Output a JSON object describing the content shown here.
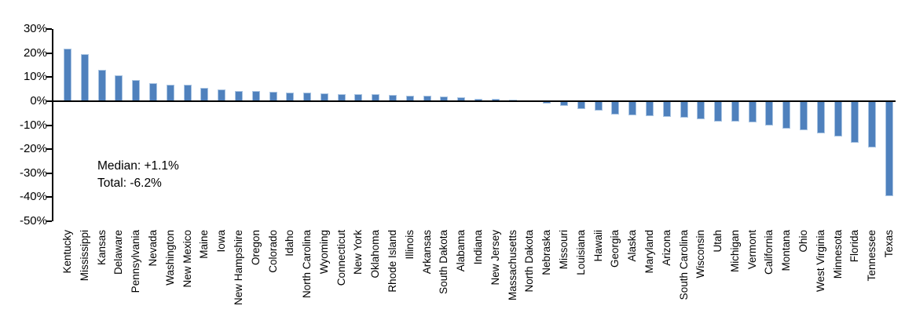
{
  "chart_data": {
    "type": "bar",
    "title": "",
    "xlabel": "",
    "ylabel": "",
    "ylim": [
      -50,
      30
    ],
    "ytick_step": 10,
    "ytick_labels": [
      "30%",
      "20%",
      "10%",
      "0%",
      "-10%",
      "-20%",
      "-30%",
      "-40%",
      "-50%"
    ],
    "grid": false,
    "legend_position": "none",
    "bar_color": "#4f81bd",
    "bar_edge_color": "#a9c4e2",
    "axis_color": "#000000",
    "categories": [
      "Kentucky",
      "Mississippi",
      "Kansas",
      "Delaware",
      "Pennsylvania",
      "Nevada",
      "Washington",
      "New Mexico",
      "Maine",
      "Iowa",
      "New Hampshire",
      "Oregon",
      "Colorado",
      "Idaho",
      "North Carolina",
      "Wyoming",
      "Connecticut",
      "New York",
      "Oklahoma",
      "Rhode Island",
      "Illinois",
      "Arkansas",
      "South Dakota",
      "Alabama",
      "Indiana",
      "New Jersey",
      "Massachusetts",
      "North Dakota",
      "Nebraska",
      "Missouri",
      "Louisiana",
      "Hawaii",
      "Georgia",
      "Alaska",
      "Maryland",
      "Arizona",
      "South Carolina",
      "Wisconsin",
      "Utah",
      "Michigan",
      "Vermont",
      "California",
      "Montana",
      "Ohio",
      "West Virginia",
      "Minnesota",
      "Florida",
      "Tennessee",
      "Texas"
    ],
    "values": [
      21.7,
      19.5,
      13.0,
      10.8,
      8.7,
      7.4,
      6.8,
      6.7,
      5.5,
      4.7,
      4.3,
      4.1,
      3.9,
      3.7,
      3.5,
      3.3,
      3.0,
      2.9,
      2.8,
      2.5,
      2.3,
      2.1,
      1.9,
      1.6,
      1.1,
      0.8,
      0.5,
      0.1,
      -1.0,
      -2.0,
      -3.3,
      -4.1,
      -5.5,
      -5.9,
      -6.3,
      -6.6,
      -6.9,
      -7.6,
      -8.4,
      -8.6,
      -9.0,
      -10.0,
      -11.5,
      -12.1,
      -13.5,
      -14.6,
      -17.5,
      -19.3,
      -39.7
    ],
    "annotations": {
      "median": "Median: +1.1%",
      "total": "Total: -6.2%"
    }
  }
}
